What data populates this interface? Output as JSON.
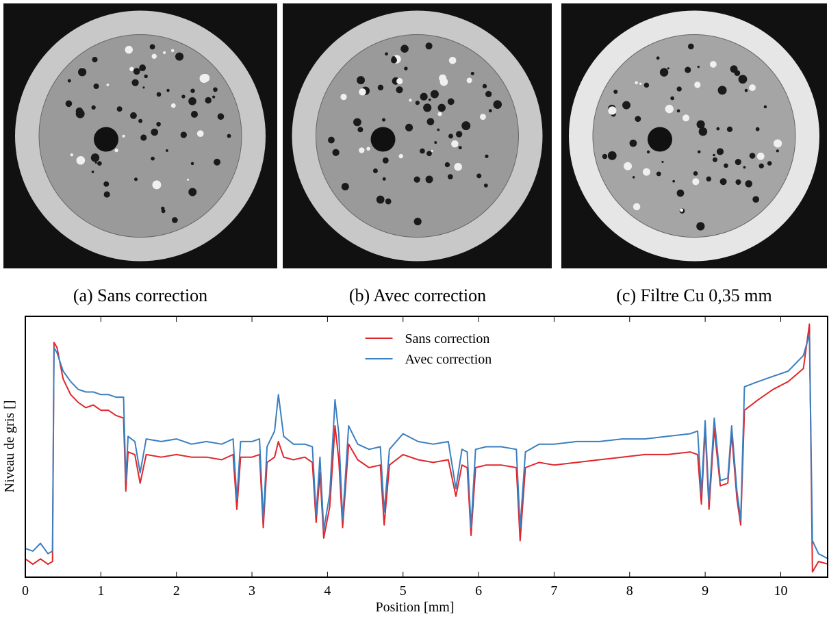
{
  "panels": [
    {
      "caption": "(a) Sans correction"
    },
    {
      "caption": "(b) Avec correction"
    },
    {
      "caption": "(c) Filtre Cu 0,35 mm"
    }
  ],
  "chart_data": {
    "type": "line",
    "xlabel": "Position [mm]",
    "ylabel": "Niveau de gris []",
    "x": [
      0,
      0.1,
      0.2,
      0.3,
      0.36,
      0.38,
      0.42,
      0.5,
      0.6,
      0.7,
      0.8,
      0.9,
      1.0,
      1.1,
      1.2,
      1.3,
      1.33,
      1.36,
      1.45,
      1.52,
      1.6,
      1.8,
      2.0,
      2.2,
      2.4,
      2.6,
      2.75,
      2.8,
      2.85,
      3.0,
      3.1,
      3.15,
      3.2,
      3.3,
      3.35,
      3.42,
      3.55,
      3.7,
      3.8,
      3.85,
      3.9,
      3.95,
      4.03,
      4.1,
      4.15,
      4.2,
      4.28,
      4.4,
      4.55,
      4.7,
      4.75,
      4.82,
      5.0,
      5.2,
      5.4,
      5.6,
      5.7,
      5.78,
      5.85,
      5.9,
      5.96,
      6.1,
      6.3,
      6.5,
      6.55,
      6.62,
      6.8,
      7.0,
      7.3,
      7.6,
      7.9,
      8.2,
      8.5,
      8.8,
      8.9,
      8.95,
      9.0,
      9.05,
      9.12,
      9.2,
      9.3,
      9.35,
      9.42,
      9.47,
      9.52,
      9.7,
      9.9,
      10.1,
      10.3,
      10.38,
      10.42,
      10.5,
      10.63
    ],
    "series": [
      {
        "name": "Sans correction",
        "color": "#e0262b",
        "values": [
          7,
          5,
          7,
          5,
          6,
          90,
          88,
          76,
          70,
          67,
          65,
          66,
          64,
          64,
          62,
          61,
          33,
          48,
          47,
          36,
          47,
          46,
          47,
          46,
          46,
          45,
          47,
          26,
          46,
          46,
          47,
          19,
          44,
          46,
          52,
          46,
          45,
          46,
          44,
          21,
          40,
          15,
          27,
          58,
          45,
          19,
          51,
          45,
          42,
          43,
          20,
          43,
          47,
          45,
          44,
          45,
          31,
          43,
          42,
          16,
          42,
          43,
          43,
          42,
          14,
          42,
          44,
          43,
          44,
          45,
          46,
          47,
          47,
          48,
          47,
          28,
          57,
          26,
          57,
          35,
          36,
          55,
          30,
          20,
          64,
          68,
          72,
          75,
          80,
          97,
          2,
          6,
          5
        ]
      },
      {
        "name": "Avec correction",
        "color": "#3a7fc0",
        "values": [
          11,
          10,
          13,
          9,
          10,
          88,
          86,
          79,
          75,
          72,
          71,
          71,
          70,
          70,
          69,
          69,
          37,
          54,
          52,
          40,
          53,
          52,
          53,
          51,
          52,
          51,
          53,
          30,
          52,
          52,
          53,
          22,
          50,
          56,
          70,
          54,
          51,
          51,
          50,
          24,
          46,
          18,
          32,
          68,
          55,
          22,
          58,
          51,
          49,
          50,
          25,
          49,
          55,
          52,
          51,
          52,
          34,
          49,
          48,
          19,
          49,
          50,
          50,
          49,
          19,
          48,
          51,
          51,
          52,
          52,
          53,
          53,
          54,
          55,
          56,
          32,
          60,
          29,
          61,
          37,
          38,
          58,
          33,
          22,
          73,
          75,
          77,
          79,
          85,
          93,
          14,
          9,
          7
        ]
      }
    ],
    "xlim": [
      0,
      10.63
    ],
    "ylim": [
      0,
      100
    ],
    "xticks": [
      0,
      1,
      2,
      3,
      4,
      5,
      6,
      7,
      8,
      9,
      10
    ],
    "legend": "upper center"
  }
}
